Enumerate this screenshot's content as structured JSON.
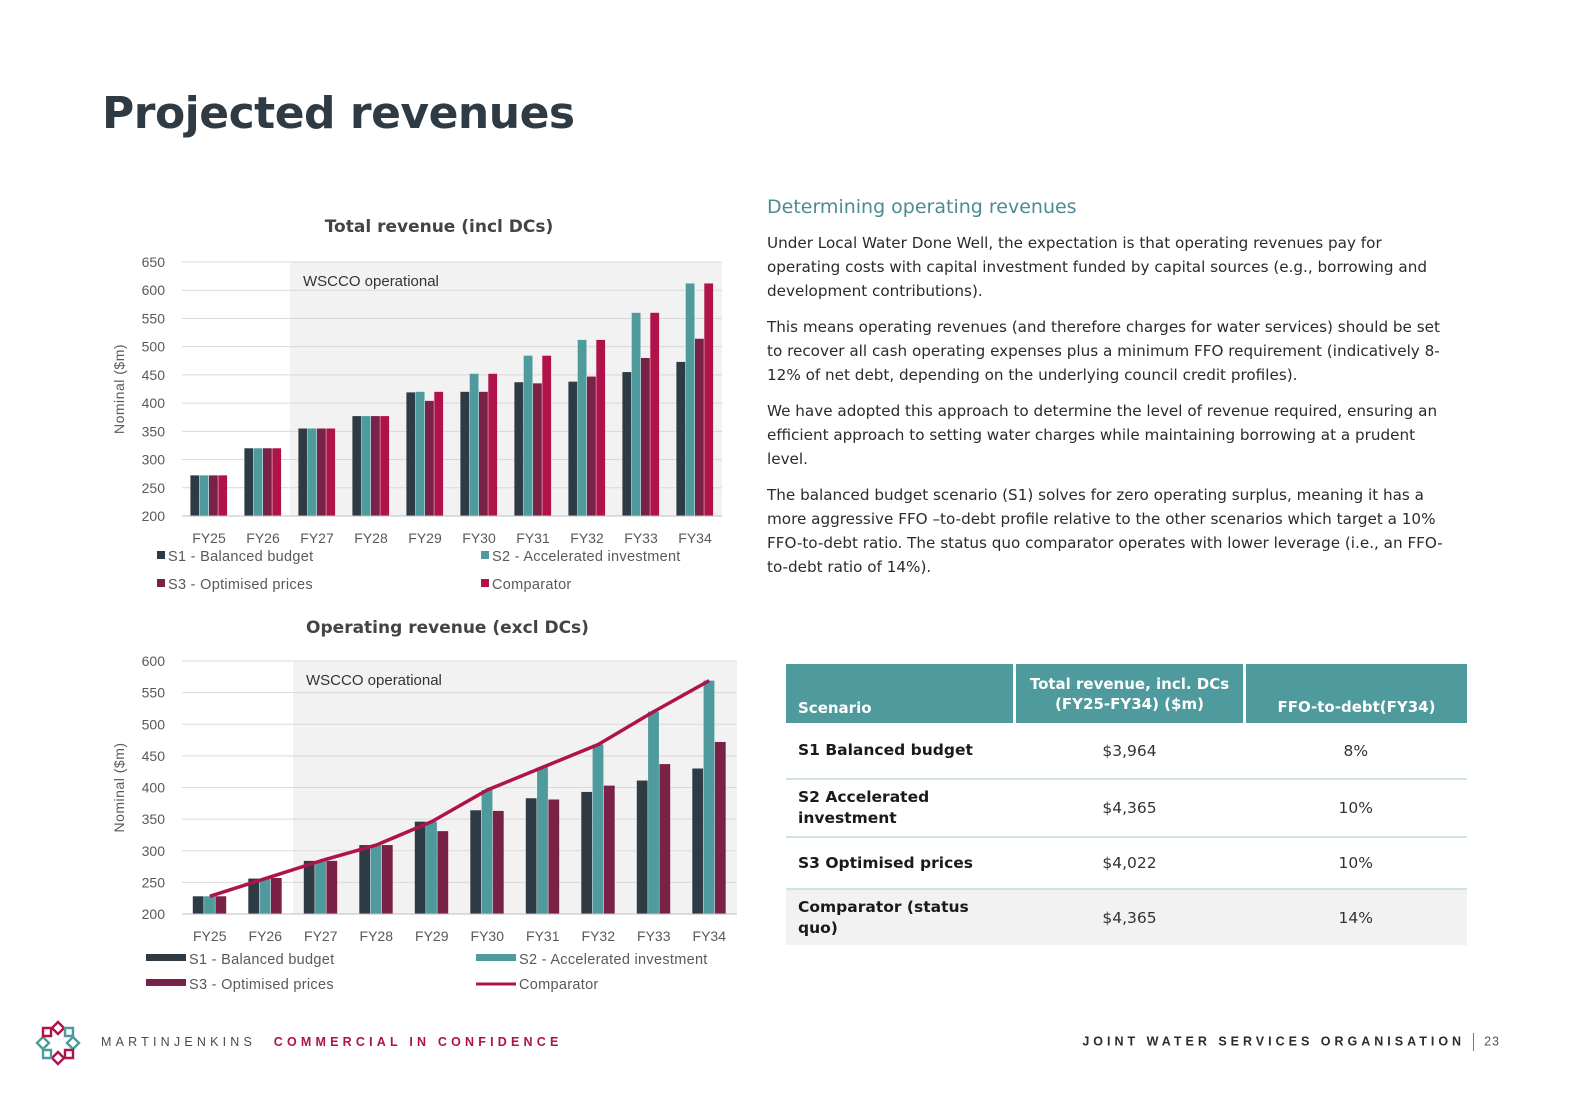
{
  "page": {
    "title": "Projected revenues"
  },
  "colors": {
    "s1": "#2e3b45",
    "s2": "#4e9a9c",
    "s3": "#7a2148",
    "comparator": "#b0124a",
    "heading": "#4a8c92"
  },
  "text": {
    "heading": "Determining operating revenues",
    "paragraphs": [
      "Under Local Water Done Well, the expectation is that operating revenues pay for operating costs with capital investment funded by capital sources (e.g., borrowing and development contributions).",
      "This means operating revenues (and therefore charges for water services) should be set to recover all cash operating expenses plus a minimum FFO requirement (indicatively 8-12% of net debt, depending on the underlying council credit profiles).",
      "We have adopted this approach to determine the level of revenue required, ensuring an efficient approach to setting water charges while maintaining borrowing at a prudent level.",
      "The balanced budget scenario (S1) solves for zero operating surplus, meaning it has a more aggressive FFO –to-debt profile relative to the other scenarios which target a 10% FFO-to-debt ratio. The status quo comparator operates with lower leverage (i.e., an FFO-to-debt ratio of 14%)."
    ]
  },
  "table": {
    "headers": [
      "Scenario",
      "Total revenue, incl. DCs (FY25-FY34) ($m)",
      "FFO-to-debt(FY34)"
    ],
    "rows": [
      {
        "scenario": "S1 Balanced budget",
        "revenue": "$3,964",
        "ffo": "8%"
      },
      {
        "scenario": "S2 Accelerated investment",
        "revenue": "$4,365",
        "ffo": "10%"
      },
      {
        "scenario": "S3 Optimised prices",
        "revenue": "$4,022",
        "ffo": "10%"
      },
      {
        "scenario": "Comparator (status quo)",
        "revenue": "$4,365",
        "ffo": "14%"
      }
    ]
  },
  "footer": {
    "brand": "MARTINJENKINS",
    "confidential": "COMMERCIAL IN CONFIDENCE",
    "org": "JOINT WATER SERVICES ORGANISATION",
    "page_number": "23"
  },
  "chart_data": [
    {
      "type": "bar",
      "title": "Total revenue (incl DCs)",
      "ylabel": "Nominal ($m)",
      "xlabel": "",
      "ylim": [
        200,
        650
      ],
      "yticks": [
        200,
        250,
        300,
        350,
        400,
        450,
        500,
        550,
        600,
        650
      ],
      "categories": [
        "FY25",
        "FY26",
        "FY27",
        "FY28",
        "FY29",
        "FY30",
        "FY31",
        "FY32",
        "FY33",
        "FY34"
      ],
      "shaded_region": {
        "label": "WSCCO operational",
        "from_category": "FY27"
      },
      "legend_position": "bottom",
      "series": [
        {
          "name": "S1 - Balanced budget",
          "color": "#2e3b45",
          "values": [
            272,
            320,
            355,
            377,
            419,
            420,
            437,
            438,
            455,
            473
          ]
        },
        {
          "name": "S2 - Accelerated investment",
          "color": "#4e9a9c",
          "values": [
            272,
            320,
            355,
            377,
            420,
            452,
            484,
            512,
            560,
            612
          ]
        },
        {
          "name": "S3 - Optimised prices",
          "color": "#7a2148",
          "values": [
            272,
            320,
            355,
            377,
            404,
            420,
            435,
            447,
            480,
            514
          ]
        },
        {
          "name": "Comparator",
          "color": "#b0124a",
          "values": [
            272,
            320,
            355,
            377,
            420,
            452,
            484,
            512,
            560,
            612
          ]
        }
      ]
    },
    {
      "type": "bar",
      "title": "Operating revenue (excl DCs)",
      "ylabel": "Nominal ($m)",
      "xlabel": "",
      "ylim": [
        200,
        600
      ],
      "yticks": [
        200,
        250,
        300,
        350,
        400,
        450,
        500,
        550,
        600
      ],
      "categories": [
        "FY25",
        "FY26",
        "FY27",
        "FY28",
        "FY29",
        "FY30",
        "FY31",
        "FY32",
        "FY33",
        "FY34"
      ],
      "shaded_region": {
        "label": "WSCCO operational",
        "from_category": "FY27"
      },
      "legend_position": "bottom",
      "series": [
        {
          "name": "S1 - Balanced budget",
          "color": "#2e3b45",
          "values": [
            228,
            256,
            284,
            309,
            346,
            364,
            383,
            393,
            411,
            430
          ]
        },
        {
          "name": "S2 - Accelerated investment",
          "color": "#4e9a9c",
          "values": [
            228,
            256,
            284,
            309,
            346,
            396,
            432,
            468,
            520,
            569
          ]
        },
        {
          "name": "S3 - Optimised prices",
          "color": "#7a2148",
          "values": [
            228,
            257,
            284,
            309,
            331,
            363,
            381,
            403,
            437,
            472
          ]
        },
        {
          "name": "Comparator",
          "color": "#b0124a",
          "render": "line",
          "values": [
            228,
            256,
            284,
            309,
            346,
            396,
            432,
            468,
            520,
            569
          ]
        }
      ]
    }
  ]
}
